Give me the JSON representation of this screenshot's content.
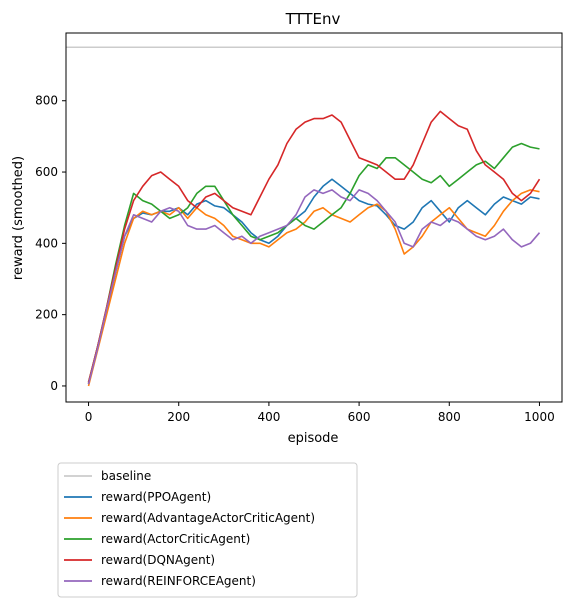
{
  "chart_data": {
    "type": "line",
    "title": "TTTEnv",
    "xlabel": "episode",
    "ylabel": "reward (smoothed)",
    "xlim": [
      -50,
      1050
    ],
    "ylim": [
      -45,
      990
    ],
    "xticks": [
      0,
      200,
      400,
      600,
      800,
      1000
    ],
    "yticks": [
      0,
      200,
      400,
      600,
      800
    ],
    "xtick_labels": [
      "0",
      "200",
      "400",
      "600",
      "800",
      "1000"
    ],
    "ytick_labels": [
      "0",
      "200",
      "400",
      "600",
      "800"
    ],
    "grid": false,
    "legend_position": "below plot, left",
    "baseline": {
      "name": "baseline",
      "value": 950,
      "color": "#cccccc"
    },
    "series": [
      {
        "name": "reward(PPOAgent)",
        "color": "#1f77b4",
        "x": [
          0,
          20,
          40,
          60,
          80,
          100,
          120,
          140,
          160,
          180,
          200,
          220,
          240,
          260,
          280,
          300,
          320,
          340,
          360,
          380,
          400,
          420,
          440,
          460,
          480,
          500,
          520,
          540,
          560,
          580,
          600,
          620,
          640,
          660,
          680,
          700,
          720,
          740,
          760,
          780,
          800,
          820,
          840,
          860,
          880,
          900,
          920,
          940,
          960,
          980,
          1000
        ],
        "y": [
          5,
          110,
          210,
          320,
          420,
          470,
          485,
          480,
          490,
          490,
          500,
          480,
          510,
          520,
          505,
          500,
          480,
          460,
          430,
          410,
          400,
          420,
          450,
          470,
          490,
          530,
          560,
          580,
          560,
          540,
          520,
          510,
          505,
          480,
          450,
          440,
          460,
          500,
          520,
          490,
          460,
          500,
          520,
          500,
          480,
          510,
          530,
          520,
          510,
          530,
          525
        ]
      },
      {
        "name": "reward(AdvantageActorCriticAgent)",
        "color": "#ff7f0e",
        "x": [
          0,
          20,
          40,
          60,
          80,
          100,
          120,
          140,
          160,
          180,
          200,
          220,
          240,
          260,
          280,
          300,
          320,
          340,
          360,
          380,
          400,
          420,
          440,
          460,
          480,
          500,
          520,
          540,
          560,
          580,
          600,
          620,
          640,
          660,
          680,
          700,
          720,
          740,
          760,
          780,
          800,
          820,
          840,
          860,
          880,
          900,
          920,
          940,
          960,
          980,
          1000
        ],
        "y": [
          0,
          100,
          200,
          300,
          400,
          470,
          490,
          480,
          490,
          480,
          500,
          470,
          500,
          480,
          470,
          450,
          420,
          410,
          400,
          400,
          390,
          410,
          430,
          440,
          460,
          490,
          500,
          480,
          470,
          460,
          480,
          500,
          510,
          490,
          440,
          370,
          390,
          420,
          460,
          480,
          500,
          470,
          440,
          430,
          420,
          450,
          490,
          520,
          540,
          550,
          545
        ]
      },
      {
        "name": "reward(ActorCriticAgent)",
        "color": "#2ca02c",
        "x": [
          0,
          20,
          40,
          60,
          80,
          100,
          120,
          140,
          160,
          180,
          200,
          220,
          240,
          260,
          280,
          300,
          320,
          340,
          360,
          380,
          400,
          420,
          440,
          460,
          480,
          500,
          520,
          540,
          560,
          580,
          600,
          620,
          640,
          660,
          680,
          700,
          720,
          740,
          760,
          780,
          800,
          820,
          840,
          860,
          880,
          900,
          920,
          940,
          960,
          980,
          1000
        ],
        "y": [
          10,
          110,
          220,
          340,
          450,
          540,
          520,
          510,
          490,
          470,
          480,
          500,
          540,
          560,
          560,
          520,
          480,
          450,
          420,
          410,
          420,
          430,
          450,
          470,
          450,
          440,
          460,
          480,
          500,
          540,
          590,
          620,
          610,
          640,
          640,
          620,
          600,
          580,
          570,
          590,
          560,
          580,
          600,
          620,
          630,
          610,
          640,
          670,
          680,
          670,
          665
        ]
      },
      {
        "name": "reward(DQNAgent)",
        "color": "#d62728",
        "x": [
          0,
          20,
          40,
          60,
          80,
          100,
          120,
          140,
          160,
          180,
          200,
          220,
          240,
          260,
          280,
          300,
          320,
          340,
          360,
          380,
          400,
          420,
          440,
          460,
          480,
          500,
          520,
          540,
          560,
          580,
          600,
          620,
          640,
          660,
          680,
          700,
          720,
          740,
          760,
          780,
          800,
          820,
          840,
          860,
          880,
          900,
          920,
          940,
          960,
          980,
          1000
        ],
        "y": [
          10,
          110,
          220,
          330,
          440,
          520,
          560,
          590,
          600,
          580,
          560,
          520,
          500,
          530,
          540,
          520,
          500,
          490,
          480,
          530,
          580,
          620,
          680,
          720,
          740,
          750,
          750,
          760,
          740,
          690,
          640,
          630,
          620,
          600,
          580,
          580,
          620,
          680,
          740,
          770,
          750,
          730,
          720,
          660,
          620,
          600,
          580,
          540,
          520,
          540,
          580
        ]
      },
      {
        "name": "reward(REINFORCEAgent)",
        "color": "#9467bd",
        "x": [
          0,
          20,
          40,
          60,
          80,
          100,
          120,
          140,
          160,
          180,
          200,
          220,
          240,
          260,
          280,
          300,
          320,
          340,
          360,
          380,
          400,
          420,
          440,
          460,
          480,
          500,
          520,
          540,
          560,
          580,
          600,
          620,
          640,
          660,
          680,
          700,
          720,
          740,
          760,
          780,
          800,
          820,
          840,
          860,
          880,
          900,
          920,
          940,
          960,
          980,
          1000
        ],
        "y": [
          5,
          105,
          215,
          320,
          420,
          480,
          470,
          460,
          490,
          500,
          490,
          450,
          440,
          440,
          450,
          430,
          410,
          420,
          400,
          420,
          430,
          440,
          450,
          480,
          530,
          550,
          540,
          550,
          530,
          520,
          550,
          540,
          520,
          490,
          460,
          400,
          390,
          440,
          460,
          450,
          470,
          460,
          440,
          420,
          410,
          420,
          440,
          410,
          390,
          400,
          430
        ]
      }
    ]
  }
}
